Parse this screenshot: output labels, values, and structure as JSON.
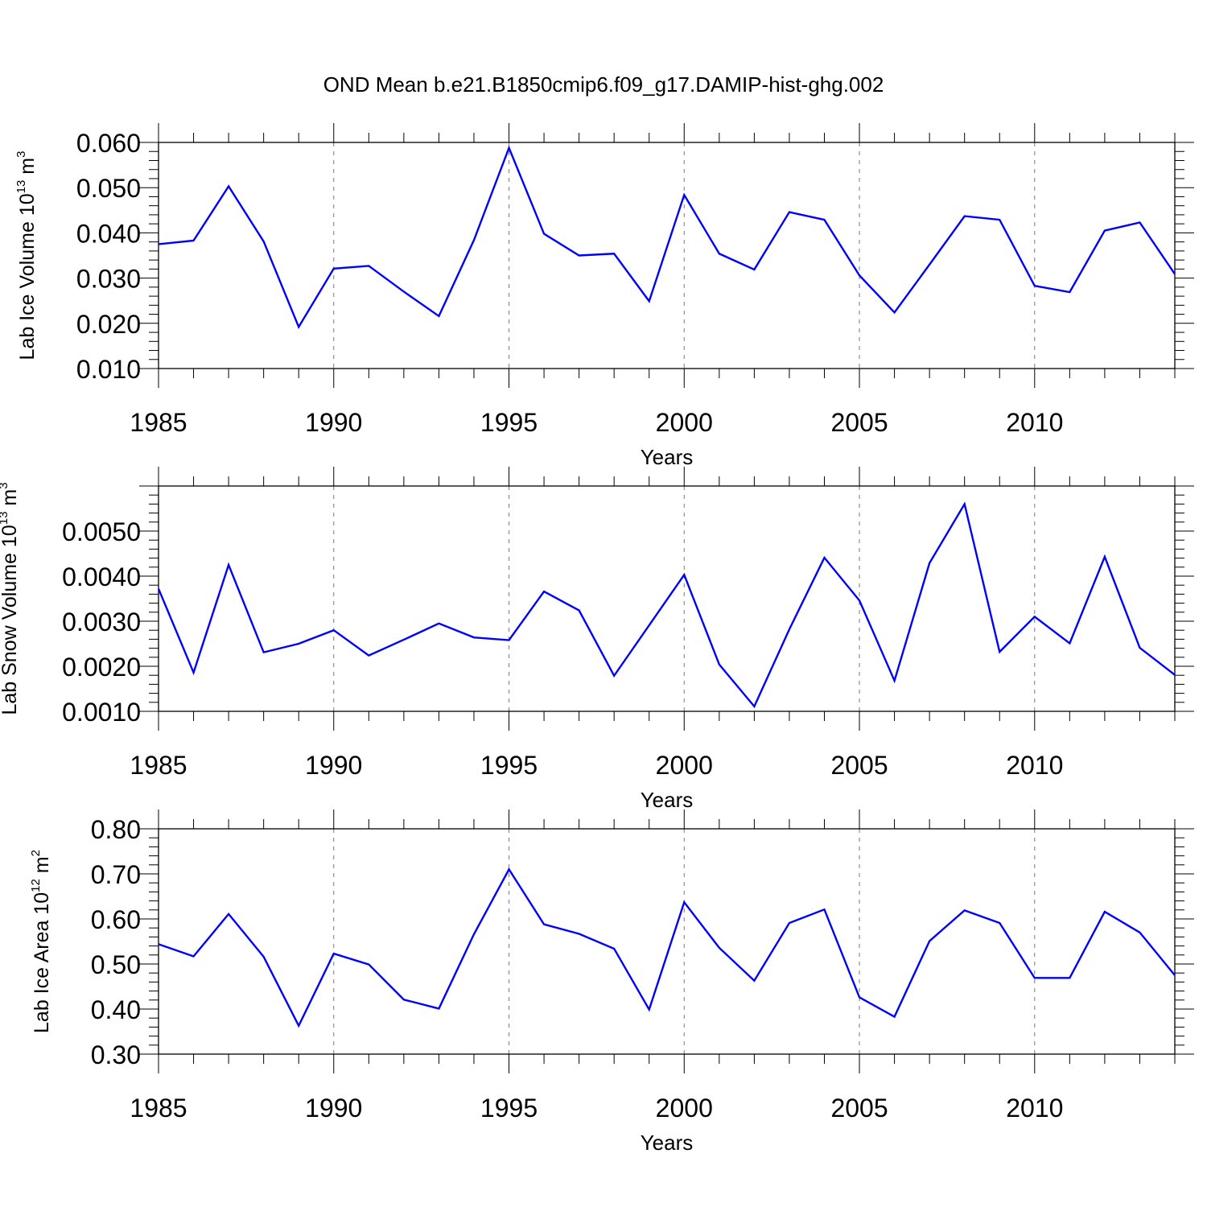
{
  "figure": {
    "title": "OND Mean b.e21.B1850cmip6.f09_g17.DAMIP-hist-ghg.002"
  },
  "style": {
    "line_color": "#0000ff",
    "axis_color": "#000000",
    "grid_color": "#7a7a7a"
  },
  "chart_data": [
    {
      "type": "line",
      "xlabel": "Years",
      "ylabel": {
        "main": "Lab Ice Volume 10",
        "exp": "13",
        "unit": " m",
        "unit_exp": "3"
      },
      "xlim": [
        1985,
        2014
      ],
      "ylim": [
        0.01,
        0.06
      ],
      "yticks": [
        "0.010",
        "0.020",
        "0.030",
        "0.040",
        "0.050",
        "0.060"
      ],
      "ytick_values": [
        0.01,
        0.02,
        0.03,
        0.04,
        0.05,
        0.06
      ],
      "xticks": [
        "1985",
        "1990",
        "1995",
        "2000",
        "2005",
        "2010"
      ],
      "xtick_values": [
        1985,
        1990,
        1995,
        2000,
        2005,
        2010
      ],
      "x": [
        1985,
        1986,
        1987,
        1988,
        1989,
        1990,
        1991,
        1992,
        1993,
        1994,
        1995,
        1996,
        1997,
        1998,
        1999,
        2000,
        2001,
        2002,
        2003,
        2004,
        2005,
        2006,
        2007,
        2008,
        2009,
        2010,
        2011,
        2012,
        2013,
        2014
      ],
      "series": [
        {
          "values": [
            0.0375,
            0.0383,
            0.0503,
            0.0381,
            0.0192,
            0.0321,
            0.0327,
            0.027,
            0.0216,
            0.0384,
            0.0588,
            0.0398,
            0.035,
            0.0354,
            0.0249,
            0.0484,
            0.0354,
            0.0319,
            0.0446,
            0.0429,
            0.0306,
            0.0224,
            0.033,
            0.0437,
            0.0429,
            0.0283,
            0.0269,
            0.0405,
            0.0423,
            0.0309
          ]
        }
      ],
      "grid": "vertical dashed at major x ticks"
    },
    {
      "type": "line",
      "xlabel": "Years",
      "ylabel": {
        "main": "Lab Snow Volume 10",
        "exp": "13",
        "unit": " m",
        "unit_exp": "3"
      },
      "xlim": [
        1985,
        2014
      ],
      "ylim": [
        0.001,
        0.006
      ],
      "yticks": [
        "0.0010",
        "0.0020",
        "0.0030",
        "0.0040",
        "0.0050"
      ],
      "ytick_values": [
        0.001,
        0.002,
        0.003,
        0.004,
        0.005
      ],
      "xticks": [
        "1985",
        "1990",
        "1995",
        "2000",
        "2005",
        "2010"
      ],
      "xtick_values": [
        1985,
        1990,
        1995,
        2000,
        2005,
        2010
      ],
      "x": [
        1985,
        1986,
        1987,
        1988,
        1989,
        1990,
        1991,
        1992,
        1993,
        1994,
        1995,
        1996,
        1997,
        1998,
        1999,
        2000,
        2001,
        2002,
        2003,
        2004,
        2005,
        2006,
        2007,
        2008,
        2009,
        2010,
        2011,
        2012,
        2013,
        2014
      ],
      "series": [
        {
          "values": [
            0.00372,
            0.00186,
            0.00425,
            0.00231,
            0.0025,
            0.0028,
            0.00224,
            0.00259,
            0.00295,
            0.00264,
            0.00258,
            0.00366,
            0.00324,
            0.00179,
            0.00291,
            0.00403,
            0.00204,
            0.00111,
            0.00282,
            0.00441,
            0.00346,
            0.00168,
            0.00429,
            0.0056,
            0.00232,
            0.0031,
            0.00251,
            0.00443,
            0.00241,
            0.00181
          ]
        }
      ],
      "grid": "vertical dashed at major x ticks"
    },
    {
      "type": "line",
      "xlabel": "Years",
      "ylabel": {
        "main": "Lab Ice Area 10",
        "exp": "12",
        "unit": " m",
        "unit_exp": "2"
      },
      "xlim": [
        1985,
        2014
      ],
      "ylim": [
        0.3,
        0.8
      ],
      "yticks": [
        "0.30",
        "0.40",
        "0.50",
        "0.60",
        "0.70",
        "0.80"
      ],
      "ytick_values": [
        0.3,
        0.4,
        0.5,
        0.6,
        0.7,
        0.8
      ],
      "xticks": [
        "1985",
        "1990",
        "1995",
        "2000",
        "2005",
        "2010"
      ],
      "xtick_values": [
        1985,
        1990,
        1995,
        2000,
        2005,
        2010
      ],
      "x": [
        1985,
        1986,
        1987,
        1988,
        1989,
        1990,
        1991,
        1992,
        1993,
        1994,
        1995,
        1996,
        1997,
        1998,
        1999,
        2000,
        2001,
        2002,
        2003,
        2004,
        2005,
        2006,
        2007,
        2008,
        2009,
        2010,
        2011,
        2012,
        2013,
        2014
      ],
      "series": [
        {
          "values": [
            0.544,
            0.517,
            0.611,
            0.516,
            0.363,
            0.523,
            0.499,
            0.421,
            0.401,
            0.566,
            0.71,
            0.588,
            0.567,
            0.534,
            0.399,
            0.637,
            0.536,
            0.463,
            0.591,
            0.621,
            0.426,
            0.383,
            0.551,
            0.619,
            0.591,
            0.469,
            0.469,
            0.616,
            0.57,
            0.475
          ]
        }
      ],
      "grid": "vertical dashed at major x ticks"
    }
  ]
}
